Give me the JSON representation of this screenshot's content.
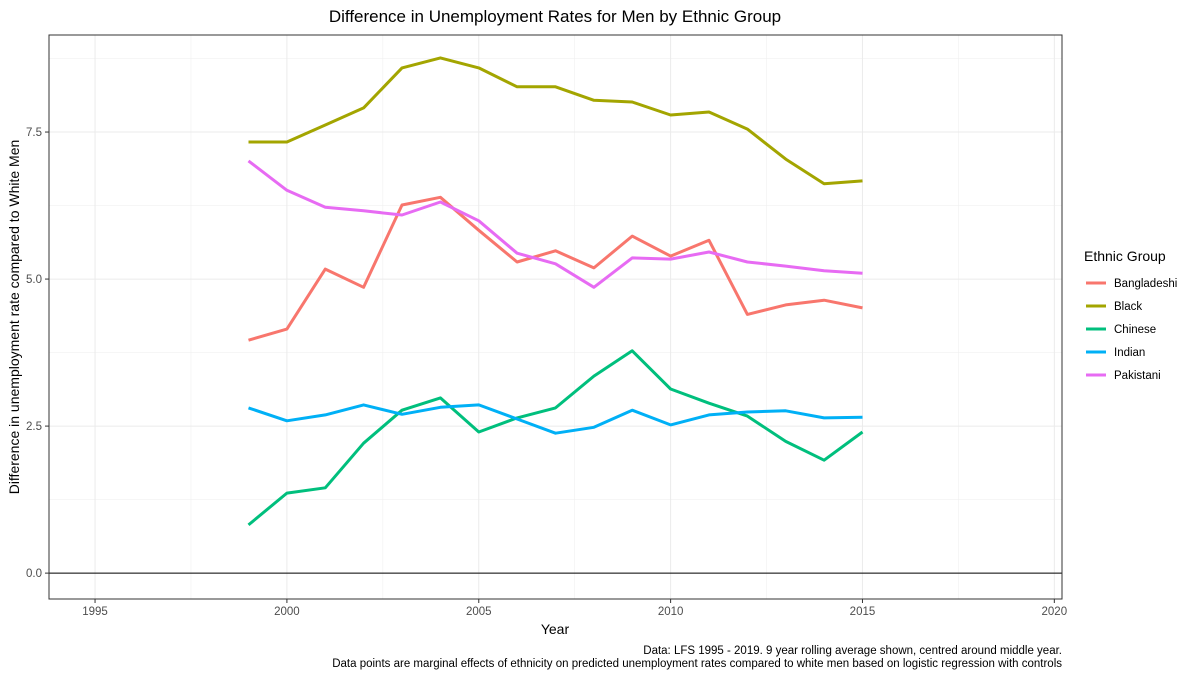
{
  "chart_data": {
    "type": "line",
    "title": "Difference in Unemployment Rates for Men by Ethnic Group",
    "xlabel": "Year",
    "ylabel": "Difference in unemployment rate compared to White Men",
    "xlim": [
      1993.8,
      2020.2
    ],
    "ylim": [
      -0.44,
      9.15
    ],
    "xticks": [
      1995,
      2000,
      2005,
      2010,
      2015,
      2020
    ],
    "yticks": [
      0,
      2.5,
      5,
      7.5
    ],
    "ytick_labels": [
      "0.0",
      "2.5",
      "5.0",
      "7.5"
    ],
    "grid": true,
    "hline": 0,
    "legend": {
      "title": "Ethnic Group",
      "placement": "right"
    },
    "caption": [
      "Data: LFS 1995 - 2019. 9 year rolling average shown, centred around middle year.",
      "Data points are marginal effects of ethnicity on predicted unemployment rates compared to white men based on logistic regression with controls"
    ],
    "x": [
      1999,
      2000,
      2001,
      2002,
      2003,
      2004,
      2005,
      2006,
      2007,
      2008,
      2009,
      2010,
      2011,
      2012,
      2013,
      2014,
      2015
    ],
    "series": [
      {
        "name": "Bangladeshi",
        "color": "#F8766D",
        "values": [
          3.96,
          4.15,
          5.17,
          4.86,
          6.26,
          6.39,
          5.83,
          5.29,
          5.48,
          5.19,
          5.73,
          5.39,
          5.66,
          4.4,
          4.56,
          4.64,
          4.51
        ]
      },
      {
        "name": "Black",
        "color": "#A3A500",
        "values": [
          7.33,
          7.33,
          7.62,
          7.91,
          8.59,
          8.76,
          8.59,
          8.27,
          8.27,
          8.04,
          8.01,
          7.79,
          7.84,
          7.55,
          7.04,
          6.62,
          6.67
        ]
      },
      {
        "name": "Chinese",
        "color": "#00BF7D",
        "values": [
          0.82,
          1.36,
          1.45,
          2.21,
          2.77,
          2.98,
          2.4,
          2.64,
          2.81,
          3.35,
          3.78,
          3.13,
          2.89,
          2.67,
          2.24,
          1.92,
          2.4
        ]
      },
      {
        "name": "Indian",
        "color": "#00B0F6",
        "values": [
          2.81,
          2.59,
          2.69,
          2.86,
          2.7,
          2.82,
          2.86,
          2.62,
          2.38,
          2.48,
          2.77,
          2.52,
          2.69,
          2.74,
          2.76,
          2.64,
          2.65
        ]
      },
      {
        "name": "Pakistani",
        "color": "#E76BF3",
        "values": [
          7.01,
          6.51,
          6.22,
          6.16,
          6.09,
          6.31,
          5.99,
          5.44,
          5.26,
          4.86,
          5.36,
          5.34,
          5.46,
          5.29,
          5.22,
          5.14,
          5.1
        ]
      }
    ]
  }
}
